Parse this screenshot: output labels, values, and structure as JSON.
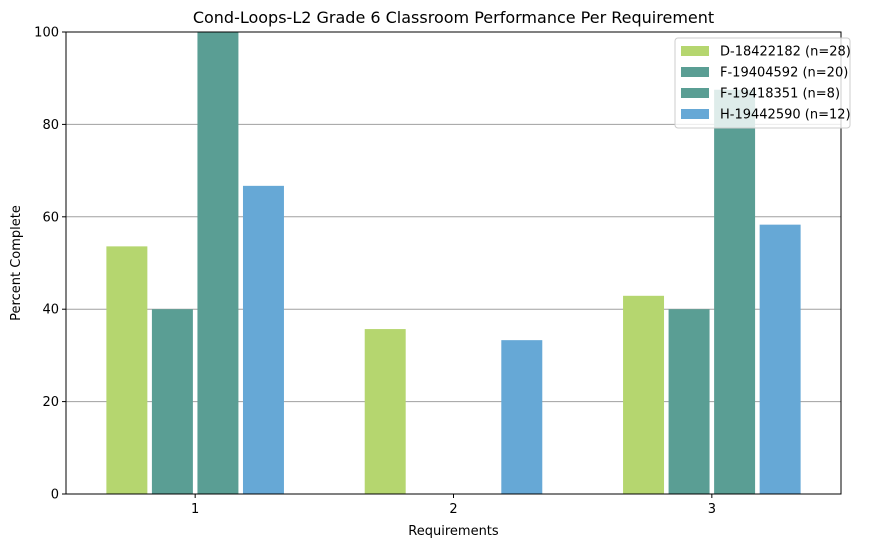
{
  "chart_data": {
    "type": "bar",
    "title": "Cond-Loops-L2 Grade 6 Classroom Performance Per Requirement",
    "xlabel": "Requirements",
    "ylabel": "Percent Complete",
    "categories": [
      "1",
      "2",
      "3"
    ],
    "ylim": [
      0,
      100
    ],
    "yticks": [
      0,
      20,
      40,
      60,
      80,
      100
    ],
    "grid": "horizontal",
    "legend_position": "top-right",
    "series": [
      {
        "name": "D-18422182 (n=28)",
        "color": "#b5d66f",
        "values": [
          53.6,
          35.7,
          42.9
        ]
      },
      {
        "name": "F-19404592 (n=20)",
        "color": "#5a9e94",
        "values": [
          40,
          0,
          40
        ]
      },
      {
        "name": "F-19418351 (n=8)",
        "color": "#5a9e94",
        "values": [
          100,
          0,
          87.5
        ]
      },
      {
        "name": "H-19442590 (n=12)",
        "color": "#66a8d6",
        "values": [
          66.7,
          33.3,
          58.3
        ]
      }
    ]
  }
}
